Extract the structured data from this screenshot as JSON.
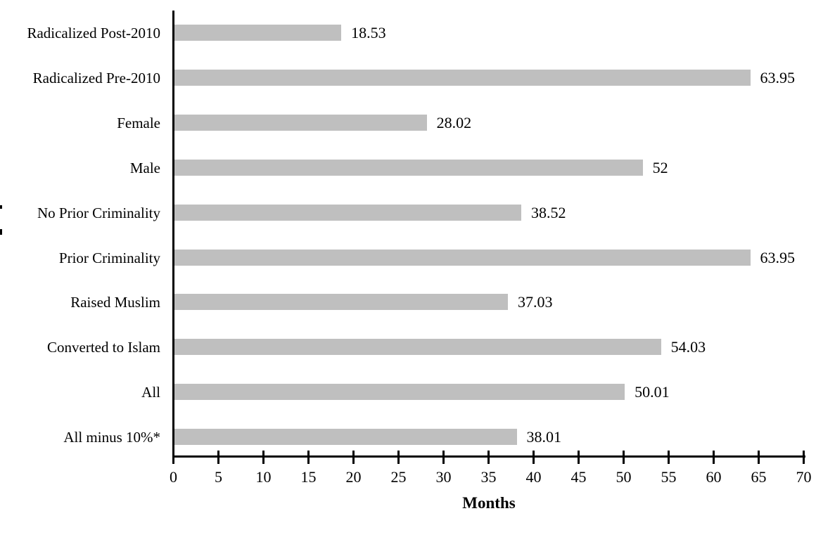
{
  "chart_data": {
    "type": "bar",
    "orientation": "horizontal",
    "title": "",
    "categories": [
      "Radicalized Post-2010",
      "Radicalized Pre-2010",
      "Female",
      "Male",
      "No Prior Criminality",
      "Prior Criminality",
      "Raised Muslim",
      "Converted to Islam",
      "All",
      "All minus 10%*"
    ],
    "values": [
      18.53,
      63.95,
      28.02,
      52,
      38.52,
      63.95,
      37.03,
      54.03,
      50.01,
      38.01
    ],
    "value_labels": [
      "18.53",
      "63.95",
      "28.02",
      "52",
      "38.52",
      "63.95",
      "37.03",
      "54.03",
      "50.01",
      "38.01"
    ],
    "xlabel": "Months",
    "xlim": [
      0,
      70
    ],
    "xticks": [
      0,
      5,
      10,
      15,
      20,
      25,
      30,
      35,
      40,
      45,
      50,
      55,
      60,
      65,
      70
    ],
    "bar_color": "#bfbfbf",
    "axis_color": "#000000",
    "text_color": "#000000",
    "grid": false,
    "legend": "none",
    "value_label_position": "right-of-bar-end"
  }
}
